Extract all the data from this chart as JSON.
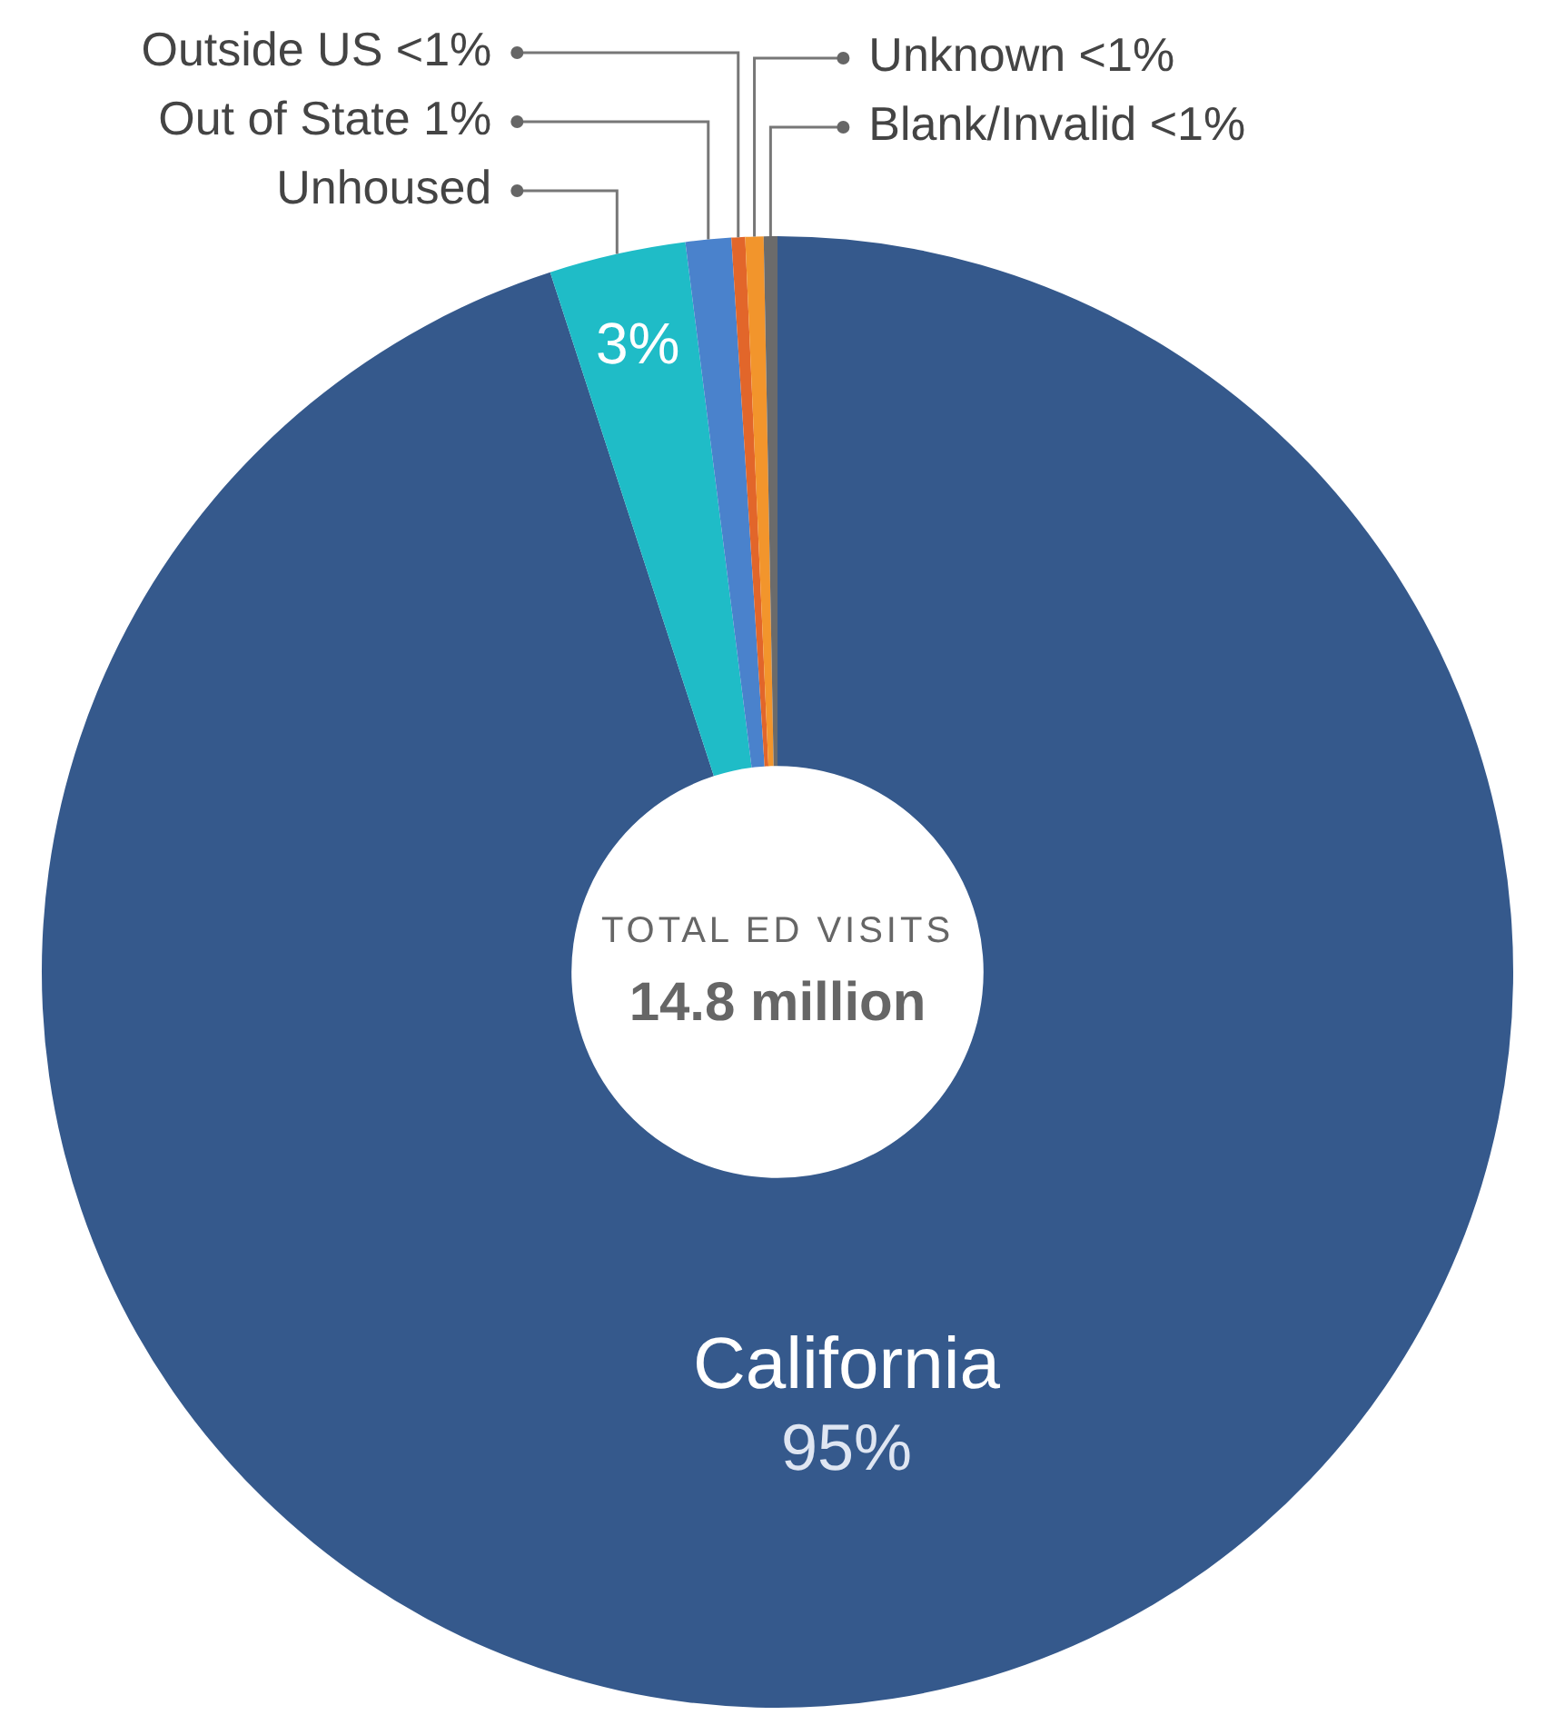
{
  "chart_data": {
    "type": "donut",
    "categories": [
      "California",
      "Unhoused",
      "Out of State",
      "Outside US",
      "Unknown",
      "Blank/Invalid"
    ],
    "values": [
      95,
      3,
      1,
      0.3,
      0.4,
      0.3
    ],
    "colors": [
      "#35598c",
      "#1fbcc7",
      "#4a82cc",
      "#e2662a",
      "#f2952c",
      "#6b6b6b"
    ],
    "value_labels": [
      "95%",
      "3%",
      "1%",
      "<1%",
      "<1%",
      "<1%"
    ],
    "annotations": [
      "TOTAL ED VISITS",
      "14.8 million"
    ]
  }
}
